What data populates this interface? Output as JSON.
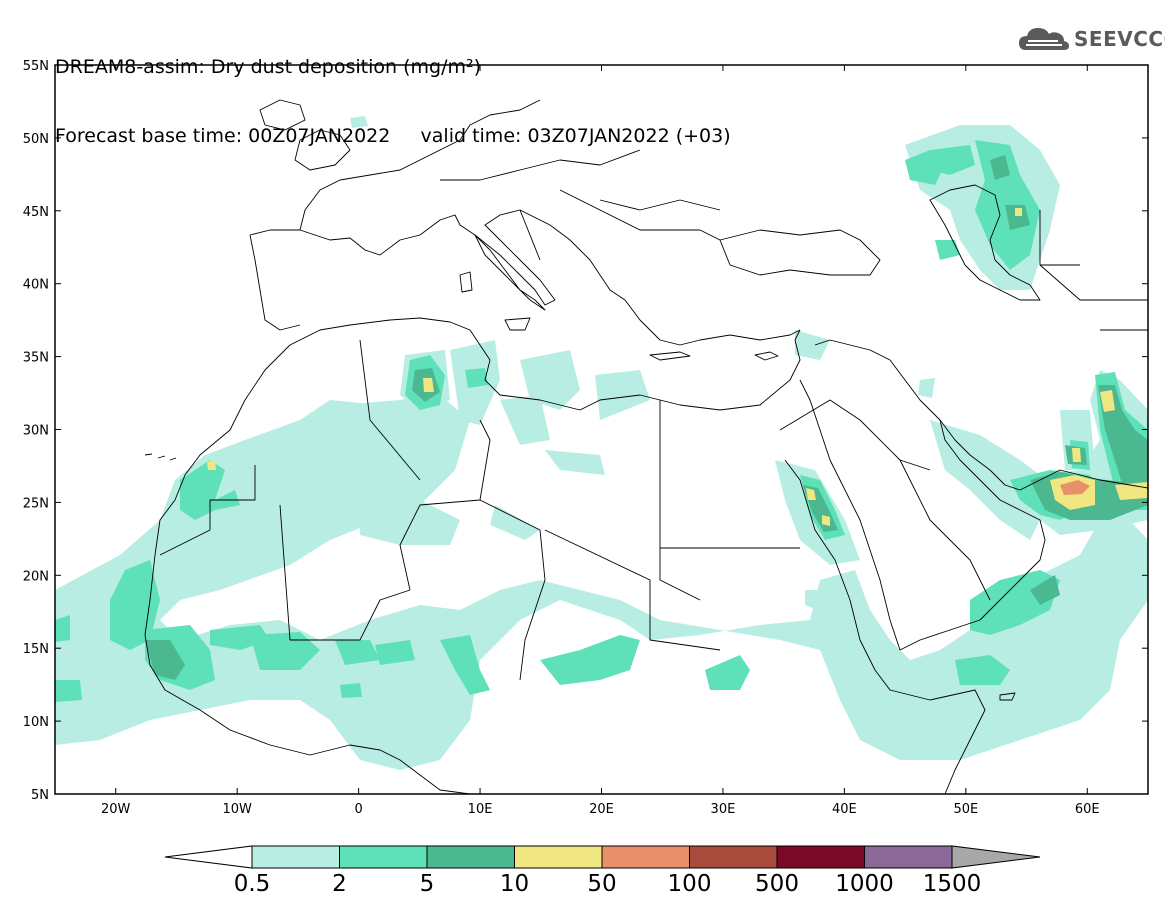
{
  "header": {
    "title_line1": "DREAM8-assim: Dry dust deposition (mg/m²)",
    "title_line2": "Forecast base time: 00Z07JAN2022     valid time: 03Z07JAN2022 (+03)"
  },
  "logo": {
    "text": "SEEVCCC",
    "icon": "cloud-icon"
  },
  "map": {
    "lon_range": [
      -25,
      65
    ],
    "lat_range": [
      5,
      55
    ],
    "lon_ticks": [
      {
        "value": -20,
        "label": "20W"
      },
      {
        "value": -10,
        "label": "10W"
      },
      {
        "value": 0,
        "label": "0"
      },
      {
        "value": 10,
        "label": "10E"
      },
      {
        "value": 20,
        "label": "20E"
      },
      {
        "value": 30,
        "label": "30E"
      },
      {
        "value": 40,
        "label": "40E"
      },
      {
        "value": 50,
        "label": "50E"
      },
      {
        "value": 60,
        "label": "60E"
      }
    ],
    "lat_ticks": [
      {
        "value": 55,
        "label": "55N"
      },
      {
        "value": 50,
        "label": "50N"
      },
      {
        "value": 45,
        "label": "45N"
      },
      {
        "value": 40,
        "label": "40N"
      },
      {
        "value": 35,
        "label": "35N"
      },
      {
        "value": 30,
        "label": "30N"
      },
      {
        "value": 25,
        "label": "25N"
      },
      {
        "value": 20,
        "label": "20N"
      },
      {
        "value": 15,
        "label": "15N"
      },
      {
        "value": 10,
        "label": "10N"
      },
      {
        "value": 5,
        "label": "5N"
      }
    ]
  },
  "colorbar": {
    "labels": [
      "0.5",
      "2",
      "5",
      "10",
      "50",
      "100",
      "500",
      "1000",
      "1500"
    ],
    "colors": {
      "below": "#ffffff",
      "bins": [
        "#b8ede4",
        "#5ee0b8",
        "#4cb890",
        "#f0e682",
        "#e8906a",
        "#a84a3c",
        "#7a0a28",
        "#8a6898"
      ],
      "above": "#a8a8a8"
    }
  },
  "chart_data": {
    "type": "heatmap",
    "title": "DREAM8-assim: Dry dust deposition (mg/m²)",
    "subtitle": "Forecast base time: 00Z07JAN2022     valid time: 03Z07JAN2022 (+03)",
    "x_range": [
      -25,
      65
    ],
    "y_range": [
      5,
      55
    ],
    "levels": [
      0.5,
      2,
      5,
      10,
      50,
      100,
      500,
      1000,
      1500
    ],
    "regions": [
      {
        "lon": -20.5,
        "lat": 18,
        "level": 2
      },
      {
        "lon": -16,
        "lat": 13.5,
        "level": 2
      },
      {
        "lon": 5.8,
        "lat": 32.8,
        "level": 10
      },
      {
        "lon": 37.6,
        "lat": 24,
        "level": 10
      },
      {
        "lon": 58.5,
        "lat": 28,
        "level": 10
      },
      {
        "lon": 62,
        "lat": 31,
        "level": 10
      },
      {
        "lon": 59,
        "lat": 25.7,
        "level": 50
      },
      {
        "lon": 64,
        "lat": 25.5,
        "level": 10
      },
      {
        "lon": 52,
        "lat": 45.5,
        "level": 5
      },
      {
        "lon": 20,
        "lat": 12.5,
        "level": 2
      },
      {
        "lon": 31,
        "lat": 13.0,
        "level": 2
      }
    ]
  }
}
